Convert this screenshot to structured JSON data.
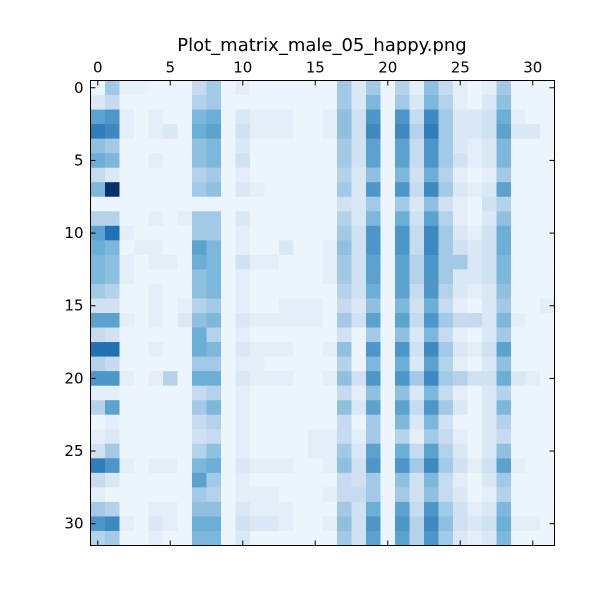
{
  "chart_data": {
    "type": "heatmap",
    "title": "Plot_matrix_male_05_happy.png",
    "xlabel": "",
    "ylabel": "",
    "x_ticks": [
      0,
      5,
      10,
      15,
      20,
      25,
      30
    ],
    "y_ticks": [
      0,
      5,
      10,
      15,
      20,
      25,
      30
    ],
    "x_axis_position": "top",
    "xlim": [
      -0.5,
      31.5
    ],
    "ylim": [
      31.5,
      -0.5
    ],
    "colormap": "Blues",
    "vmin": 0,
    "vmax": 1,
    "grid": false,
    "colors": {
      "low": "#f7fbff",
      "high": "#08306b",
      "axis": "#000000"
    },
    "values": [
      [
        0.05,
        0.35,
        0.08,
        0.08,
        0.05,
        0.05,
        0.05,
        0.25,
        0.35,
        0.05,
        0.1,
        0.05,
        0.05,
        0.05,
        0.05,
        0.05,
        0.05,
        0.35,
        0.15,
        0.35,
        0.05,
        0.3,
        0.1,
        0.4,
        0.25,
        0.1,
        0.05,
        0.1,
        0.35,
        0.05,
        0.05,
        0.05
      ],
      [
        0.15,
        0.25,
        0.05,
        0.05,
        0.05,
        0.05,
        0.05,
        0.3,
        0.35,
        0.05,
        0.05,
        0.05,
        0.05,
        0.05,
        0.05,
        0.05,
        0.05,
        0.35,
        0.15,
        0.45,
        0.05,
        0.35,
        0.15,
        0.45,
        0.3,
        0.1,
        0.05,
        0.15,
        0.4,
        0.05,
        0.05,
        0.05
      ],
      [
        0.55,
        0.6,
        0.1,
        0.05,
        0.1,
        0.05,
        0.05,
        0.45,
        0.5,
        0.05,
        0.15,
        0.1,
        0.1,
        0.1,
        0.05,
        0.05,
        0.1,
        0.4,
        0.2,
        0.6,
        0.05,
        0.6,
        0.25,
        0.65,
        0.35,
        0.15,
        0.15,
        0.2,
        0.5,
        0.1,
        0.05,
        0.05
      ],
      [
        0.7,
        0.65,
        0.1,
        0.05,
        0.1,
        0.15,
        0.05,
        0.5,
        0.55,
        0.05,
        0.2,
        0.1,
        0.1,
        0.1,
        0.05,
        0.05,
        0.1,
        0.4,
        0.2,
        0.65,
        0.05,
        0.65,
        0.3,
        0.7,
        0.35,
        0.15,
        0.15,
        0.2,
        0.55,
        0.15,
        0.15,
        0.05
      ],
      [
        0.4,
        0.35,
        0.05,
        0.05,
        0.05,
        0.05,
        0.05,
        0.4,
        0.45,
        0.05,
        0.15,
        0.05,
        0.05,
        0.05,
        0.05,
        0.05,
        0.05,
        0.35,
        0.2,
        0.55,
        0.05,
        0.55,
        0.25,
        0.6,
        0.35,
        0.15,
        0.1,
        0.15,
        0.45,
        0.05,
        0.05,
        0.05
      ],
      [
        0.5,
        0.45,
        0.05,
        0.05,
        0.1,
        0.05,
        0.05,
        0.4,
        0.45,
        0.05,
        0.2,
        0.05,
        0.05,
        0.05,
        0.05,
        0.05,
        0.05,
        0.35,
        0.2,
        0.55,
        0.05,
        0.55,
        0.25,
        0.6,
        0.35,
        0.2,
        0.1,
        0.15,
        0.45,
        0.05,
        0.05,
        0.05
      ],
      [
        0.25,
        0.15,
        0.05,
        0.05,
        0.05,
        0.05,
        0.05,
        0.3,
        0.35,
        0.05,
        0.1,
        0.05,
        0.05,
        0.05,
        0.05,
        0.05,
        0.05,
        0.3,
        0.15,
        0.4,
        0.05,
        0.45,
        0.2,
        0.5,
        0.3,
        0.1,
        0.05,
        0.1,
        0.35,
        0.05,
        0.05,
        0.05
      ],
      [
        0.45,
        1.0,
        0.05,
        0.05,
        0.05,
        0.05,
        0.05,
        0.35,
        0.4,
        0.05,
        0.15,
        0.1,
        0.05,
        0.05,
        0.05,
        0.05,
        0.05,
        0.35,
        0.15,
        0.6,
        0.05,
        0.6,
        0.25,
        0.65,
        0.35,
        0.15,
        0.1,
        0.15,
        0.55,
        0.05,
        0.05,
        0.05
      ],
      [
        0.05,
        0.05,
        0.05,
        0.05,
        0.05,
        0.05,
        0.05,
        0.05,
        0.05,
        0.05,
        0.05,
        0.05,
        0.05,
        0.05,
        0.05,
        0.05,
        0.05,
        0.2,
        0.15,
        0.35,
        0.05,
        0.35,
        0.15,
        0.4,
        0.2,
        0.1,
        0.05,
        0.2,
        0.3,
        0.05,
        0.05,
        0.05
      ],
      [
        0.3,
        0.3,
        0.05,
        0.05,
        0.1,
        0.05,
        0.1,
        0.35,
        0.35,
        0.05,
        0.15,
        0.05,
        0.05,
        0.05,
        0.05,
        0.05,
        0.05,
        0.3,
        0.15,
        0.45,
        0.05,
        0.5,
        0.2,
        0.55,
        0.3,
        0.1,
        0.05,
        0.15,
        0.4,
        0.05,
        0.05,
        0.05
      ],
      [
        0.55,
        0.75,
        0.1,
        0.05,
        0.05,
        0.05,
        0.05,
        0.35,
        0.35,
        0.05,
        0.1,
        0.05,
        0.05,
        0.05,
        0.05,
        0.05,
        0.05,
        0.35,
        0.2,
        0.6,
        0.05,
        0.6,
        0.25,
        0.65,
        0.35,
        0.15,
        0.1,
        0.2,
        0.5,
        0.05,
        0.05,
        0.05
      ],
      [
        0.5,
        0.45,
        0.05,
        0.1,
        0.1,
        0.05,
        0.05,
        0.55,
        0.45,
        0.05,
        0.1,
        0.05,
        0.05,
        0.15,
        0.05,
        0.05,
        0.1,
        0.4,
        0.2,
        0.6,
        0.05,
        0.6,
        0.25,
        0.65,
        0.35,
        0.2,
        0.15,
        0.2,
        0.5,
        0.05,
        0.05,
        0.05
      ],
      [
        0.45,
        0.4,
        0.1,
        0.05,
        0.1,
        0.1,
        0.05,
        0.5,
        0.45,
        0.05,
        0.2,
        0.1,
        0.1,
        0.05,
        0.05,
        0.05,
        0.1,
        0.35,
        0.2,
        0.55,
        0.05,
        0.55,
        0.3,
        0.6,
        0.35,
        0.35,
        0.15,
        0.2,
        0.45,
        0.05,
        0.05,
        0.05
      ],
      [
        0.45,
        0.4,
        0.1,
        0.05,
        0.05,
        0.05,
        0.05,
        0.4,
        0.45,
        0.05,
        0.1,
        0.05,
        0.05,
        0.05,
        0.05,
        0.05,
        0.1,
        0.35,
        0.2,
        0.55,
        0.05,
        0.55,
        0.3,
        0.6,
        0.35,
        0.15,
        0.15,
        0.2,
        0.45,
        0.05,
        0.05,
        0.05
      ],
      [
        0.35,
        0.3,
        0.05,
        0.05,
        0.1,
        0.05,
        0.05,
        0.4,
        0.45,
        0.05,
        0.1,
        0.05,
        0.05,
        0.05,
        0.05,
        0.05,
        0.05,
        0.3,
        0.2,
        0.5,
        0.05,
        0.55,
        0.25,
        0.6,
        0.3,
        0.15,
        0.1,
        0.15,
        0.4,
        0.05,
        0.05,
        0.05
      ],
      [
        0.2,
        0.2,
        0.05,
        0.05,
        0.1,
        0.05,
        0.1,
        0.3,
        0.35,
        0.05,
        0.1,
        0.05,
        0.05,
        0.1,
        0.1,
        0.1,
        0.05,
        0.25,
        0.15,
        0.4,
        0.05,
        0.45,
        0.2,
        0.5,
        0.25,
        0.1,
        0.05,
        0.15,
        0.35,
        0.05,
        0.05,
        0.1
      ],
      [
        0.55,
        0.55,
        0.1,
        0.05,
        0.1,
        0.05,
        0.15,
        0.4,
        0.45,
        0.05,
        0.15,
        0.1,
        0.1,
        0.1,
        0.1,
        0.1,
        0.05,
        0.35,
        0.2,
        0.55,
        0.05,
        0.55,
        0.25,
        0.6,
        0.35,
        0.25,
        0.25,
        0.15,
        0.45,
        0.1,
        0.05,
        0.05
      ],
      [
        0.25,
        0.2,
        0.05,
        0.05,
        0.05,
        0.05,
        0.05,
        0.5,
        0.3,
        0.05,
        0.1,
        0.05,
        0.05,
        0.05,
        0.05,
        0.05,
        0.05,
        0.2,
        0.05,
        0.35,
        0.05,
        0.4,
        0.15,
        0.45,
        0.25,
        0.1,
        0.05,
        0.15,
        0.35,
        0.05,
        0.05,
        0.05
      ],
      [
        0.75,
        0.75,
        0.05,
        0.05,
        0.1,
        0.05,
        0.05,
        0.5,
        0.45,
        0.05,
        0.15,
        0.1,
        0.1,
        0.1,
        0.05,
        0.05,
        0.1,
        0.4,
        0.05,
        0.6,
        0.05,
        0.6,
        0.2,
        0.65,
        0.35,
        0.15,
        0.1,
        0.2,
        0.55,
        0.05,
        0.05,
        0.05
      ],
      [
        0.3,
        0.25,
        0.05,
        0.05,
        0.05,
        0.05,
        0.05,
        0.35,
        0.35,
        0.05,
        0.1,
        0.1,
        0.05,
        0.05,
        0.05,
        0.05,
        0.05,
        0.3,
        0.05,
        0.45,
        0.05,
        0.5,
        0.15,
        0.55,
        0.3,
        0.1,
        0.05,
        0.15,
        0.4,
        0.05,
        0.05,
        0.05
      ],
      [
        0.6,
        0.6,
        0.1,
        0.05,
        0.1,
        0.3,
        0.05,
        0.5,
        0.5,
        0.05,
        0.15,
        0.1,
        0.1,
        0.1,
        0.05,
        0.05,
        0.1,
        0.4,
        0.2,
        0.6,
        0.05,
        0.6,
        0.35,
        0.65,
        0.35,
        0.3,
        0.2,
        0.2,
        0.5,
        0.15,
        0.1,
        0.05
      ],
      [
        0.1,
        0.1,
        0.05,
        0.05,
        0.05,
        0.05,
        0.05,
        0.25,
        0.3,
        0.05,
        0.1,
        0.05,
        0.05,
        0.05,
        0.05,
        0.05,
        0.05,
        0.25,
        0.1,
        0.4,
        0.05,
        0.4,
        0.15,
        0.45,
        0.25,
        0.1,
        0.05,
        0.15,
        0.3,
        0.05,
        0.05,
        0.05
      ],
      [
        0.3,
        0.55,
        0.05,
        0.05,
        0.05,
        0.05,
        0.05,
        0.35,
        0.45,
        0.05,
        0.1,
        0.05,
        0.05,
        0.05,
        0.05,
        0.05,
        0.05,
        0.4,
        0.15,
        0.55,
        0.05,
        0.55,
        0.25,
        0.6,
        0.35,
        0.15,
        0.05,
        0.15,
        0.45,
        0.05,
        0.05,
        0.05
      ],
      [
        0.05,
        0.1,
        0.05,
        0.05,
        0.05,
        0.05,
        0.05,
        0.25,
        0.3,
        0.05,
        0.1,
        0.05,
        0.05,
        0.05,
        0.05,
        0.05,
        0.05,
        0.25,
        0.05,
        0.35,
        0.05,
        0.45,
        0.15,
        0.45,
        0.2,
        0.05,
        0.05,
        0.15,
        0.3,
        0.05,
        0.05,
        0.05
      ],
      [
        0.1,
        0.15,
        0.05,
        0.05,
        0.05,
        0.05,
        0.05,
        0.2,
        0.25,
        0.05,
        0.1,
        0.05,
        0.05,
        0.05,
        0.05,
        0.1,
        0.1,
        0.25,
        0.1,
        0.35,
        0.05,
        0.3,
        0.1,
        0.35,
        0.25,
        0.1,
        0.05,
        0.15,
        0.25,
        0.05,
        0.05,
        0.05
      ],
      [
        0.2,
        0.35,
        0.05,
        0.05,
        0.05,
        0.05,
        0.05,
        0.3,
        0.4,
        0.05,
        0.1,
        0.05,
        0.05,
        0.05,
        0.05,
        0.1,
        0.1,
        0.35,
        0.15,
        0.55,
        0.05,
        0.5,
        0.25,
        0.55,
        0.3,
        0.15,
        0.05,
        0.15,
        0.4,
        0.05,
        0.05,
        0.05
      ],
      [
        0.7,
        0.6,
        0.1,
        0.05,
        0.1,
        0.1,
        0.05,
        0.45,
        0.5,
        0.05,
        0.15,
        0.1,
        0.1,
        0.1,
        0.05,
        0.05,
        0.1,
        0.4,
        0.2,
        0.6,
        0.05,
        0.6,
        0.35,
        0.65,
        0.35,
        0.2,
        0.1,
        0.2,
        0.55,
        0.1,
        0.05,
        0.05
      ],
      [
        0.25,
        0.15,
        0.05,
        0.05,
        0.05,
        0.05,
        0.05,
        0.55,
        0.35,
        0.05,
        0.1,
        0.05,
        0.05,
        0.05,
        0.05,
        0.05,
        0.05,
        0.25,
        0.2,
        0.35,
        0.05,
        0.4,
        0.2,
        0.45,
        0.25,
        0.1,
        0.05,
        0.15,
        0.35,
        0.05,
        0.05,
        0.05
      ],
      [
        0.1,
        0.05,
        0.05,
        0.05,
        0.05,
        0.05,
        0.05,
        0.35,
        0.3,
        0.05,
        0.1,
        0.1,
        0.1,
        0.05,
        0.05,
        0.05,
        0.1,
        0.25,
        0.25,
        0.35,
        0.05,
        0.35,
        0.2,
        0.4,
        0.25,
        0.15,
        0.05,
        0.1,
        0.3,
        0.05,
        0.05,
        0.05
      ],
      [
        0.35,
        0.3,
        0.05,
        0.05,
        0.1,
        0.1,
        0.05,
        0.4,
        0.4,
        0.05,
        0.15,
        0.1,
        0.1,
        0.1,
        0.05,
        0.05,
        0.05,
        0.35,
        0.2,
        0.5,
        0.05,
        0.55,
        0.25,
        0.6,
        0.35,
        0.2,
        0.1,
        0.15,
        0.45,
        0.05,
        0.05,
        0.05
      ],
      [
        0.6,
        0.65,
        0.1,
        0.05,
        0.15,
        0.1,
        0.05,
        0.5,
        0.5,
        0.05,
        0.2,
        0.15,
        0.15,
        0.1,
        0.05,
        0.05,
        0.1,
        0.4,
        0.2,
        0.6,
        0.05,
        0.6,
        0.3,
        0.65,
        0.4,
        0.2,
        0.15,
        0.2,
        0.5,
        0.1,
        0.1,
        0.05
      ],
      [
        0.3,
        0.35,
        0.05,
        0.05,
        0.1,
        0.05,
        0.05,
        0.45,
        0.45,
        0.05,
        0.15,
        0.05,
        0.05,
        0.05,
        0.05,
        0.05,
        0.05,
        0.35,
        0.2,
        0.55,
        0.05,
        0.55,
        0.3,
        0.6,
        0.35,
        0.15,
        0.1,
        0.15,
        0.45,
        0.05,
        0.05,
        0.05
      ]
    ]
  }
}
